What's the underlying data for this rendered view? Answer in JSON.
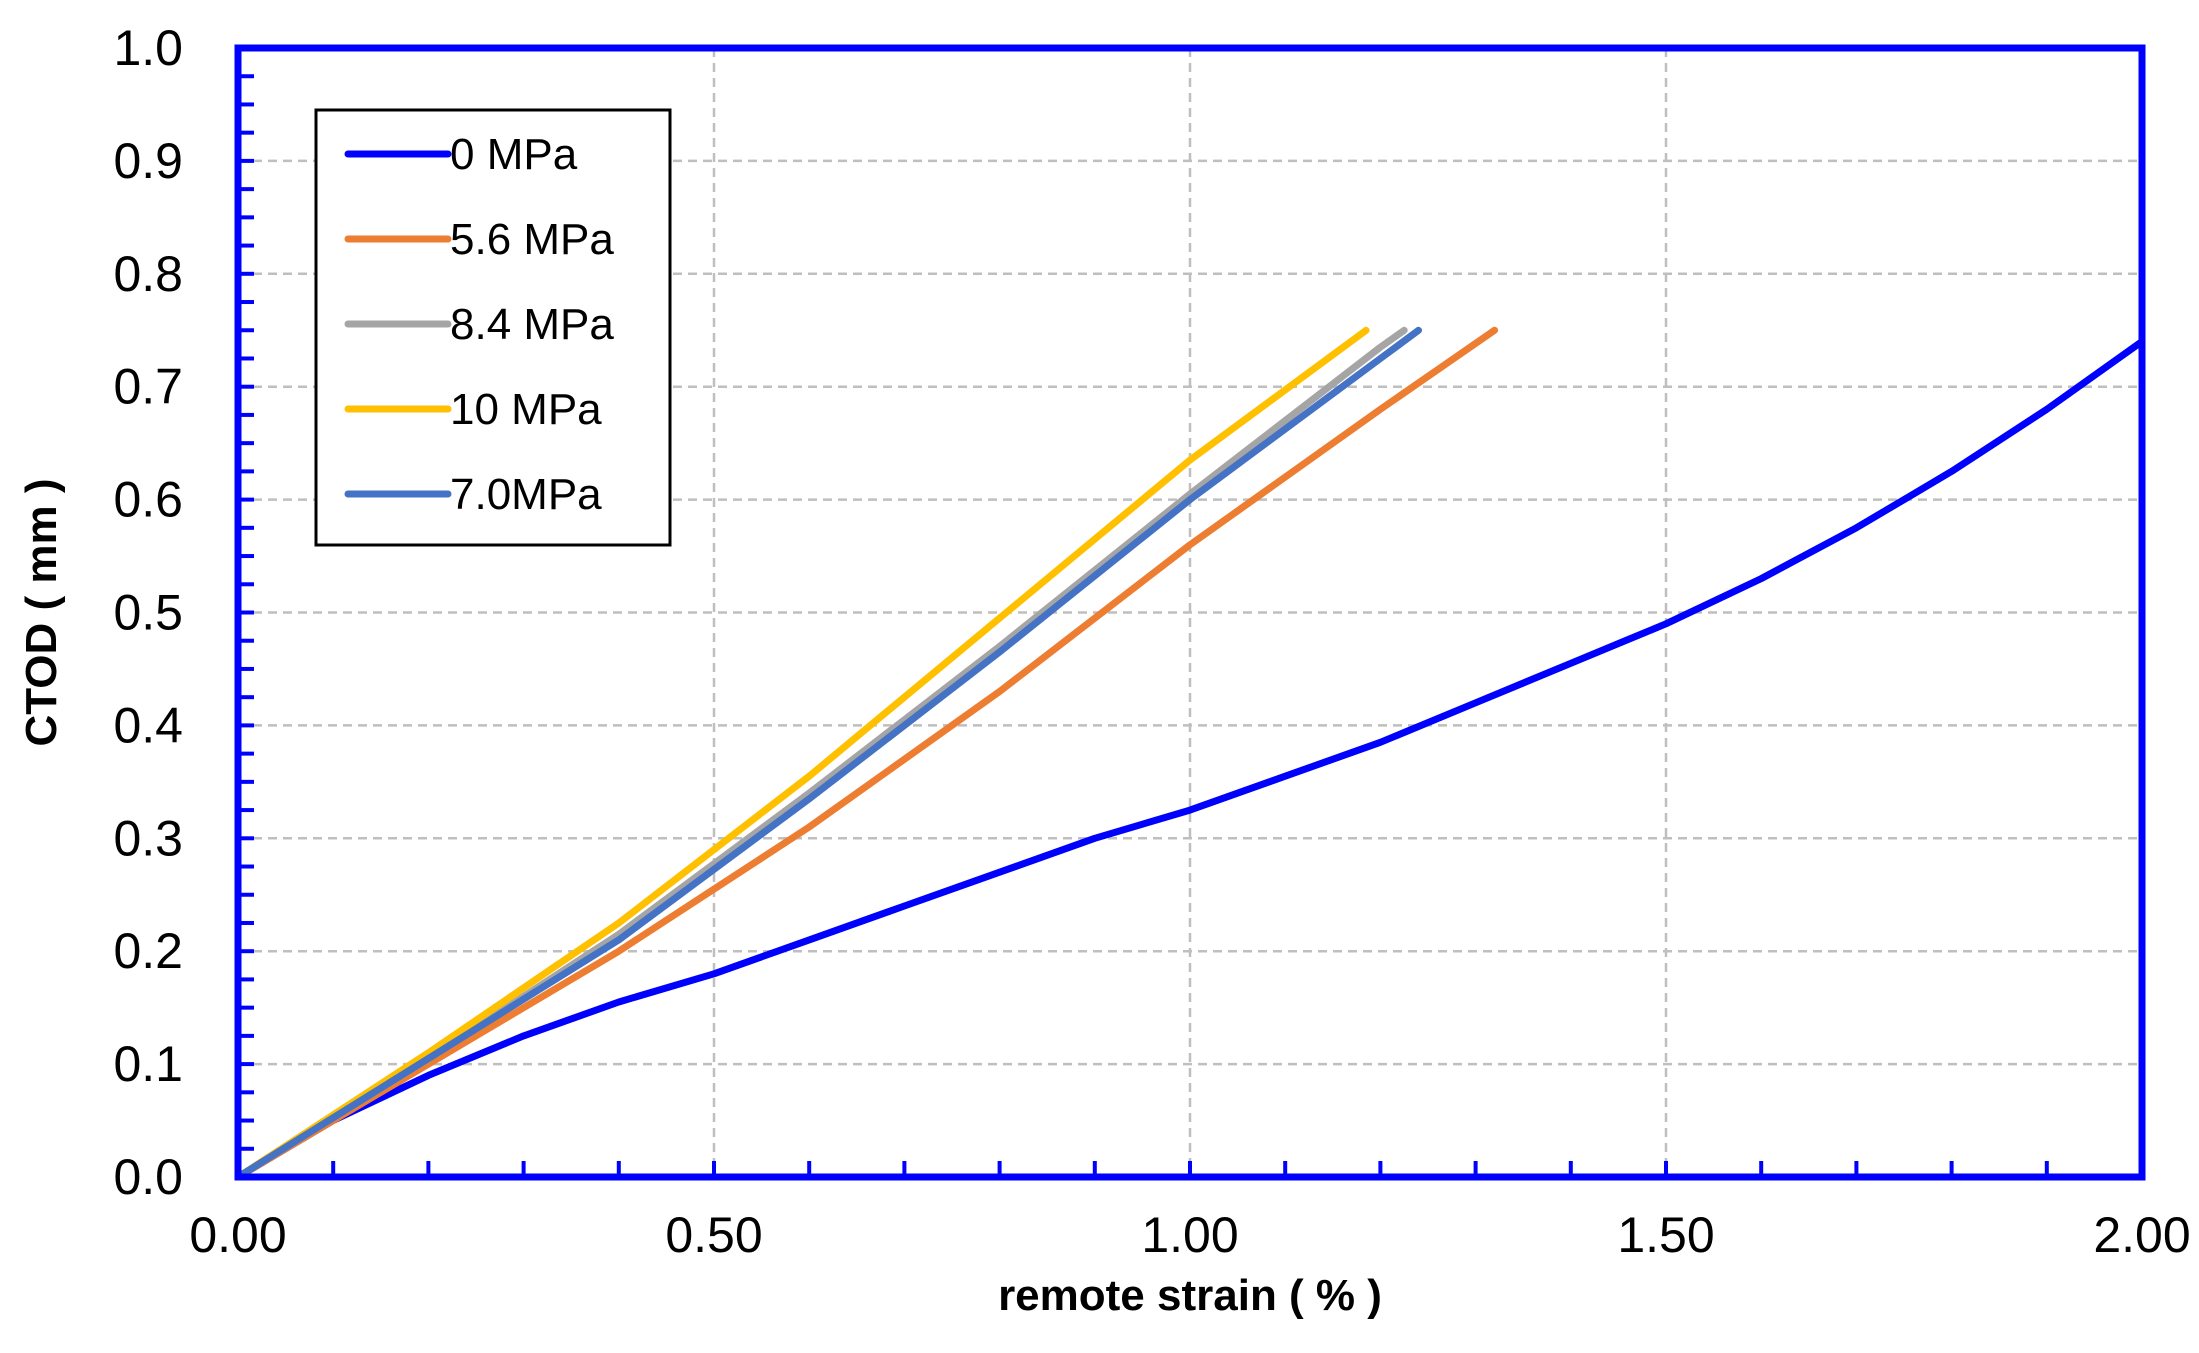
{
  "chart_data": {
    "type": "line",
    "title": "",
    "xlabel": "remote strain ( % )",
    "ylabel": "CTOD ( mm )",
    "xlim": [
      0,
      2.0
    ],
    "ylim": [
      0,
      1.0
    ],
    "x_ticks": [
      "0.00",
      "0.50",
      "1.00",
      "1.50",
      "2.00"
    ],
    "y_ticks": [
      "0.0",
      "0.1",
      "0.2",
      "0.3",
      "0.4",
      "0.5",
      "0.6",
      "0.7",
      "0.8",
      "0.9",
      "1.0"
    ],
    "grid": true,
    "legend_position": "top-left",
    "frame_color": "#0000FF",
    "series": [
      {
        "name": "0 MPa",
        "color": "#0000FF",
        "x": [
          0,
          0.1,
          0.2,
          0.3,
          0.4,
          0.5,
          0.6,
          0.7,
          0.8,
          0.9,
          1.0,
          1.1,
          1.2,
          1.3,
          1.4,
          1.5,
          1.6,
          1.7,
          1.8,
          1.9,
          2.0
        ],
        "y": [
          0,
          0.05,
          0.09,
          0.125,
          0.155,
          0.18,
          0.21,
          0.24,
          0.27,
          0.3,
          0.325,
          0.355,
          0.385,
          0.42,
          0.455,
          0.49,
          0.53,
          0.575,
          0.625,
          0.68,
          0.74
        ]
      },
      {
        "name": "5.6 MPa",
        "color": "#ED7D31",
        "x": [
          0,
          0.2,
          0.4,
          0.6,
          0.8,
          1.0,
          1.2,
          1.32
        ],
        "y": [
          0,
          0.1,
          0.2,
          0.31,
          0.43,
          0.56,
          0.68,
          0.75
        ]
      },
      {
        "name": "8.4 MPa",
        "color": "#A5A5A5",
        "x": [
          0,
          0.2,
          0.4,
          0.6,
          0.8,
          1.0,
          1.2,
          1.225
        ],
        "y": [
          0,
          0.105,
          0.215,
          0.34,
          0.47,
          0.605,
          0.735,
          0.75
        ]
      },
      {
        "name": "10 MPa",
        "color": "#FFC000",
        "x": [
          0,
          0.2,
          0.4,
          0.6,
          0.8,
          1.0,
          1.185
        ],
        "y": [
          0,
          0.11,
          0.225,
          0.355,
          0.495,
          0.635,
          0.75
        ]
      },
      {
        "name": "7.0MPa",
        "color": "#4472C4",
        "x": [
          0,
          0.2,
          0.4,
          0.6,
          0.8,
          1.0,
          1.2,
          1.24
        ],
        "y": [
          0,
          0.105,
          0.21,
          0.335,
          0.465,
          0.6,
          0.725,
          0.75
        ]
      }
    ]
  }
}
